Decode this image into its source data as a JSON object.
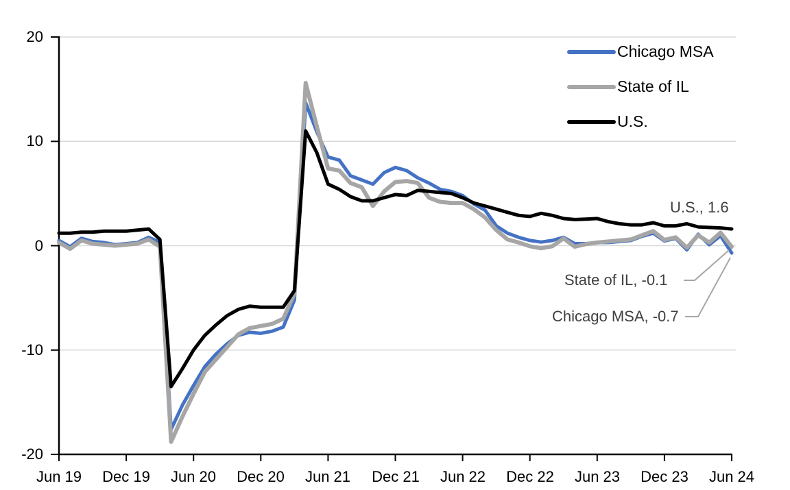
{
  "chart_data": {
    "type": "line",
    "title": "",
    "grid": "horizontal",
    "legend_position": "top-right-inside",
    "ylim": [
      -20,
      20
    ],
    "y_ticks": [
      20,
      10,
      0,
      -10,
      -20
    ],
    "y_tick_labels": [
      "20",
      "10",
      "0",
      "-10",
      "-20"
    ],
    "x_tick_labels": [
      "Jun 19",
      "Dec 19",
      "Jun 20",
      "Dec 20",
      "Jun 21",
      "Dec 21",
      "Jun 22",
      "Dec 22",
      "Jun 23",
      "Dec 23",
      "Jun 24"
    ],
    "x": [
      "2019-06",
      "2019-07",
      "2019-08",
      "2019-09",
      "2019-10",
      "2019-11",
      "2019-12",
      "2020-01",
      "2020-02",
      "2020-03",
      "2020-04",
      "2020-05",
      "2020-06",
      "2020-07",
      "2020-08",
      "2020-09",
      "2020-10",
      "2020-11",
      "2020-12",
      "2021-01",
      "2021-02",
      "2021-03",
      "2021-04",
      "2021-05",
      "2021-06",
      "2021-07",
      "2021-08",
      "2021-09",
      "2021-10",
      "2021-11",
      "2021-12",
      "2022-01",
      "2022-02",
      "2022-03",
      "2022-04",
      "2022-05",
      "2022-06",
      "2022-07",
      "2022-08",
      "2022-09",
      "2022-10",
      "2022-11",
      "2022-12",
      "2023-01",
      "2023-02",
      "2023-03",
      "2023-04",
      "2023-05",
      "2023-06",
      "2023-07",
      "2023-08",
      "2023-09",
      "2023-10",
      "2023-11",
      "2023-12",
      "2024-01",
      "2024-02",
      "2024-03",
      "2024-04",
      "2024-05",
      "2024-06"
    ],
    "series": [
      {
        "name": "Chicago MSA",
        "color": "#4472C4",
        "values": [
          0.5,
          -0.1,
          0.7,
          0.4,
          0.3,
          0.1,
          0.2,
          0.3,
          0.8,
          0.3,
          -17.6,
          -15.3,
          -13.4,
          -11.6,
          -10.4,
          -9.4,
          -8.6,
          -8.3,
          -8.4,
          -8.2,
          -7.8,
          -5.2,
          13.7,
          10.9,
          8.5,
          8.2,
          6.7,
          6.3,
          5.9,
          7.0,
          7.5,
          7.2,
          6.5,
          6.0,
          5.4,
          5.2,
          4.8,
          4.0,
          3.4,
          1.9,
          1.2,
          0.8,
          0.5,
          0.35,
          0.5,
          0.8,
          0.2,
          0.2,
          0.3,
          0.3,
          0.4,
          0.5,
          0.9,
          1.2,
          0.45,
          0.7,
          -0.4,
          1.1,
          0.1,
          0.95,
          -0.7
        ]
      },
      {
        "name": "State of IL",
        "color": "#A6A6A6",
        "values": [
          0.3,
          -0.3,
          0.5,
          0.2,
          0.1,
          0.0,
          0.1,
          0.2,
          0.6,
          -0.1,
          -18.8,
          -16.4,
          -14.2,
          -12.1,
          -10.9,
          -9.7,
          -8.5,
          -7.9,
          -7.7,
          -7.5,
          -7.0,
          -4.6,
          15.6,
          11.4,
          7.4,
          7.2,
          6.0,
          5.6,
          3.8,
          5.2,
          6.1,
          6.2,
          6.0,
          4.6,
          4.2,
          4.1,
          4.1,
          3.5,
          2.7,
          1.5,
          0.6,
          0.3,
          -0.05,
          -0.25,
          -0.05,
          0.7,
          -0.1,
          0.15,
          0.3,
          0.4,
          0.5,
          0.6,
          1.0,
          1.4,
          0.55,
          0.8,
          -0.2,
          1.0,
          0.3,
          1.25,
          -0.1
        ]
      },
      {
        "name": "U.S.",
        "color": "#000000",
        "values": [
          1.2,
          1.2,
          1.3,
          1.3,
          1.4,
          1.4,
          1.4,
          1.5,
          1.6,
          0.6,
          -13.5,
          -11.8,
          -10.0,
          -8.6,
          -7.6,
          -6.7,
          -6.1,
          -5.8,
          -5.9,
          -5.9,
          -5.9,
          -4.3,
          11.0,
          8.9,
          5.9,
          5.4,
          4.7,
          4.3,
          4.3,
          4.6,
          4.9,
          4.8,
          5.3,
          5.2,
          5.1,
          5.0,
          4.6,
          4.1,
          3.8,
          3.5,
          3.2,
          2.9,
          2.8,
          3.1,
          2.9,
          2.6,
          2.5,
          2.55,
          2.6,
          2.3,
          2.1,
          2.0,
          2.0,
          2.2,
          1.9,
          1.9,
          2.1,
          1.8,
          1.75,
          1.7,
          1.6
        ]
      }
    ],
    "annotations": [
      {
        "text": "U.S., 1.6",
        "series": "U.S.",
        "value": 1.6
      },
      {
        "text": "State of IL, -0.1",
        "series": "State of IL",
        "value": -0.1
      },
      {
        "text": "Chicago MSA, -0.7",
        "series": "Chicago MSA",
        "value": -0.7
      }
    ]
  },
  "colors": {
    "grid": "#D9D9D9",
    "axis": "#000000",
    "tick_label": "#000000",
    "annotation_text": "#404040",
    "leader_line": "#A6A6A6"
  }
}
